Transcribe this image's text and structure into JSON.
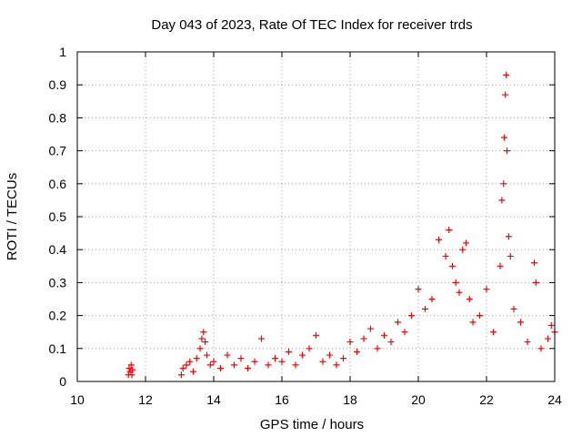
{
  "chart_data": {
    "type": "scatter",
    "title": "Day 043 of 2023, Rate Of TEC Index for receiver trds",
    "xlabel": "GPS time / hours",
    "ylabel": "ROTI / TECUs",
    "xlim": [
      10,
      24
    ],
    "ylim": [
      0,
      1
    ],
    "x_ticks": [
      "10",
      "12",
      "14",
      "16",
      "18",
      "20",
      "22",
      "24"
    ],
    "y_ticks": [
      "0",
      "0.1",
      "0.2",
      "0.3",
      "0.4",
      "0.5",
      "0.6",
      "0.7",
      "0.8",
      "0.9",
      "1"
    ],
    "grid": true,
    "marker": "+",
    "marker_color": "#ff0000",
    "series": [
      {
        "name": "",
        "color": "#ff0000",
        "points": [
          [
            11.5,
            0.02
          ],
          [
            11.52,
            0.04
          ],
          [
            11.55,
            0.03
          ],
          [
            11.58,
            0.05
          ],
          [
            11.6,
            0.02
          ],
          [
            11.62,
            0.035
          ],
          [
            13.05,
            0.02
          ],
          [
            13.1,
            0.04
          ],
          [
            13.2,
            0.05
          ],
          [
            13.3,
            0.06
          ],
          [
            13.4,
            0.03
          ],
          [
            13.5,
            0.07
          ],
          [
            13.6,
            0.1
          ],
          [
            13.65,
            0.13
          ],
          [
            13.7,
            0.15
          ],
          [
            13.75,
            0.12
          ],
          [
            13.8,
            0.08
          ],
          [
            13.9,
            0.05
          ],
          [
            14.0,
            0.06
          ],
          [
            14.2,
            0.04
          ],
          [
            14.4,
            0.08
          ],
          [
            14.6,
            0.05
          ],
          [
            14.8,
            0.07
          ],
          [
            15.0,
            0.04
          ],
          [
            15.2,
            0.06
          ],
          [
            15.4,
            0.13
          ],
          [
            15.6,
            0.05
          ],
          [
            15.8,
            0.07
          ],
          [
            16.0,
            0.06
          ],
          [
            16.2,
            0.09
          ],
          [
            16.4,
            0.05
          ],
          [
            16.6,
            0.08
          ],
          [
            16.8,
            0.1
          ],
          [
            17.0,
            0.14
          ],
          [
            17.2,
            0.06
          ],
          [
            17.4,
            0.08
          ],
          [
            17.6,
            0.05
          ],
          [
            17.8,
            0.07
          ],
          [
            18.0,
            0.12
          ],
          [
            18.2,
            0.09
          ],
          [
            18.4,
            0.13
          ],
          [
            18.6,
            0.16
          ],
          [
            18.8,
            0.1
          ],
          [
            19.0,
            0.14
          ],
          [
            19.2,
            0.12
          ],
          [
            19.4,
            0.18
          ],
          [
            19.6,
            0.15
          ],
          [
            19.8,
            0.2
          ],
          [
            20.0,
            0.28
          ],
          [
            20.2,
            0.22
          ],
          [
            20.4,
            0.25
          ],
          [
            20.6,
            0.43
          ],
          [
            20.8,
            0.38
          ],
          [
            20.9,
            0.46
          ],
          [
            21.0,
            0.35
          ],
          [
            21.1,
            0.3
          ],
          [
            21.2,
            0.27
          ],
          [
            21.3,
            0.4
          ],
          [
            21.4,
            0.42
          ],
          [
            21.5,
            0.25
          ],
          [
            21.6,
            0.18
          ],
          [
            21.8,
            0.2
          ],
          [
            22.0,
            0.28
          ],
          [
            22.2,
            0.15
          ],
          [
            22.4,
            0.35
          ],
          [
            22.45,
            0.55
          ],
          [
            22.5,
            0.6
          ],
          [
            22.52,
            0.74
          ],
          [
            22.55,
            0.87
          ],
          [
            22.58,
            0.93
          ],
          [
            22.6,
            0.7
          ],
          [
            22.65,
            0.44
          ],
          [
            22.7,
            0.38
          ],
          [
            22.8,
            0.22
          ],
          [
            23.0,
            0.18
          ],
          [
            23.2,
            0.12
          ],
          [
            23.4,
            0.36
          ],
          [
            23.45,
            0.3
          ],
          [
            23.6,
            0.1
          ],
          [
            23.8,
            0.13
          ],
          [
            23.9,
            0.17
          ],
          [
            24.0,
            0.15
          ]
        ]
      }
    ]
  }
}
